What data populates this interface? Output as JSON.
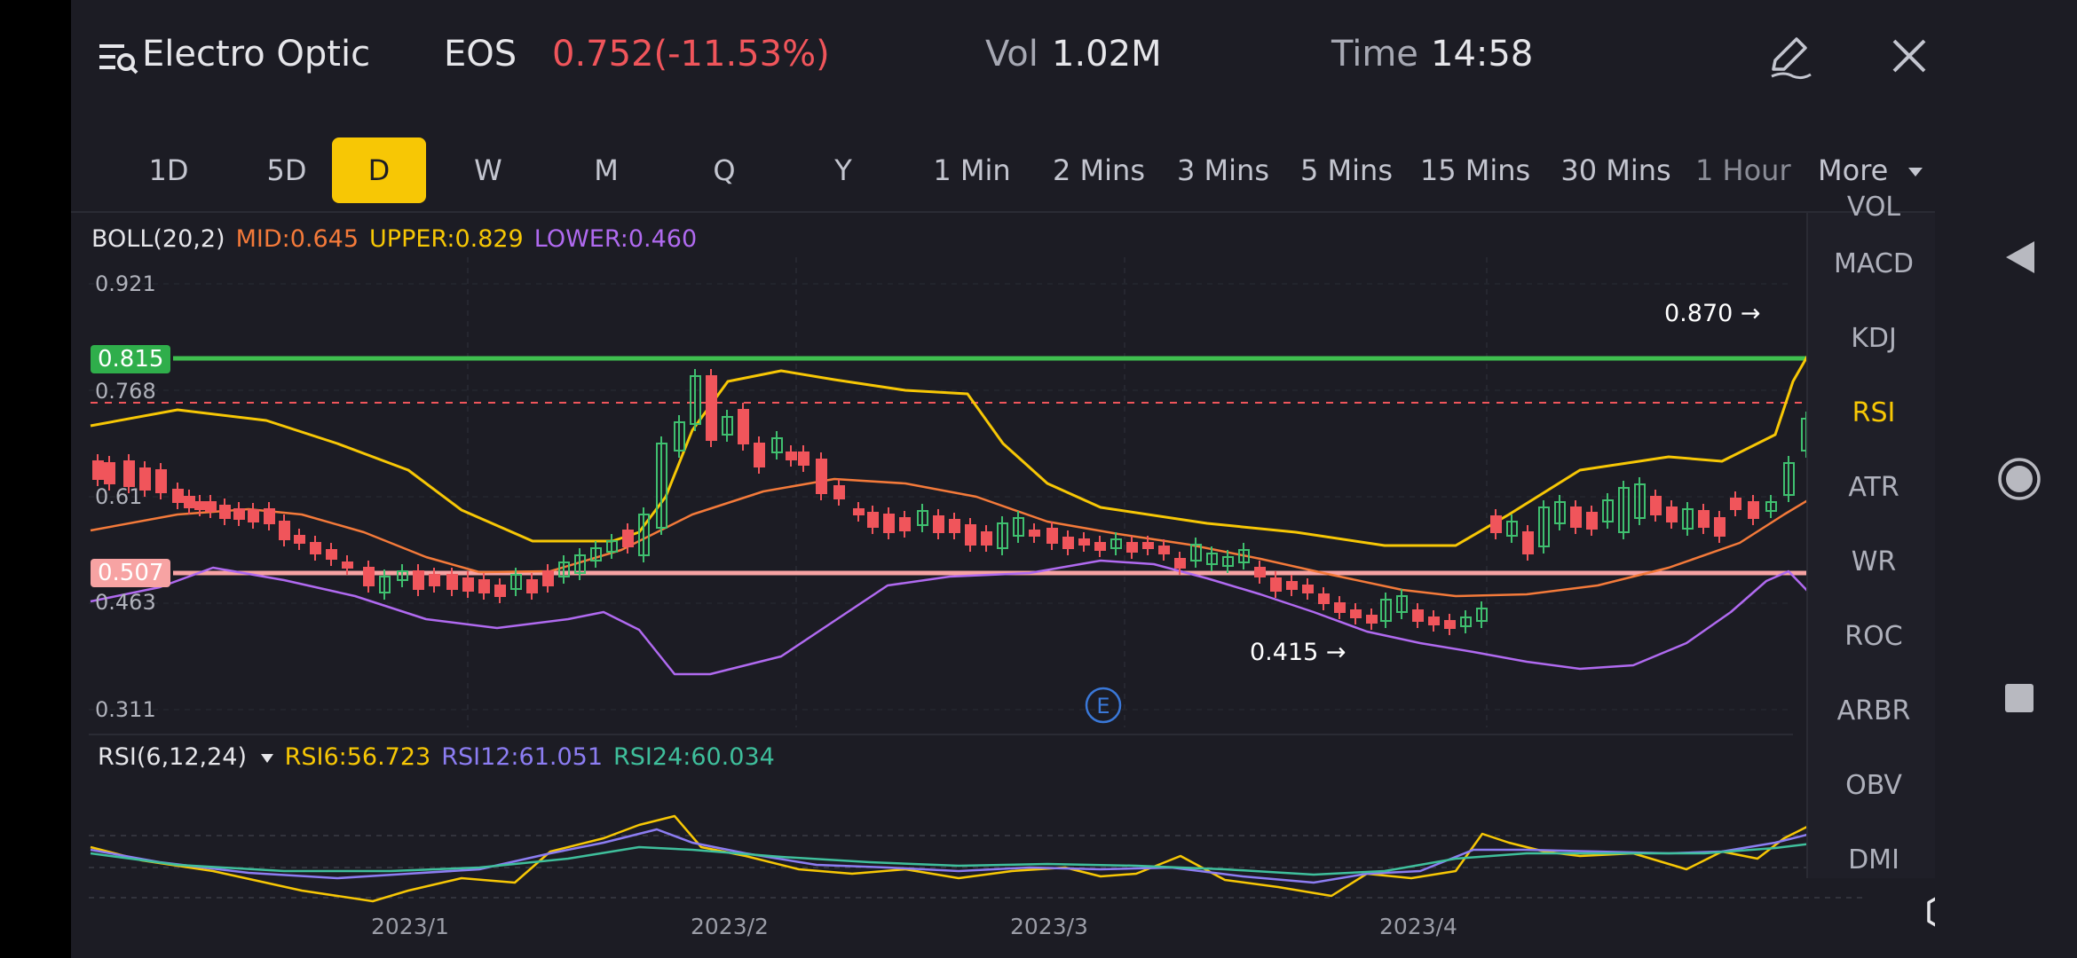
{
  "header": {
    "title": "Electro Optic",
    "ticker": "EOS",
    "price": "0.752(-11.53%)",
    "vol_label": "Vol",
    "vol_value": "1.02M",
    "time_label": "Time",
    "time_value": "14:58"
  },
  "tabs": [
    "1D",
    "5D",
    "D",
    "W",
    "M",
    "Q",
    "Y",
    "1 Min",
    "2 Mins",
    "3 Mins",
    "5 Mins",
    "15 Mins",
    "30 Mins",
    "1 Hour"
  ],
  "active_tab": "D",
  "more_label": "More",
  "indicators": [
    "VOL",
    "MACD",
    "KDJ",
    "RSI",
    "ATR",
    "WR",
    "ROC",
    "ARBR",
    "OBV",
    "DMI"
  ],
  "active_indicator": "RSI",
  "boll_legend": {
    "name": "BOLL(20,2)",
    "mid": "MID:0.645",
    "upper": "UPPER:0.829",
    "lower": "LOWER:0.460"
  },
  "rsi_legend": {
    "name": "RSI(6,12,24)",
    "rsi6": "RSI6:56.723",
    "rsi12": "RSI12:61.051",
    "rsi24": "RSI24:60.034"
  },
  "price_axis": [
    "0.921",
    "0.768",
    "0.61",
    "0.463",
    "0.311"
  ],
  "price_lines": {
    "green_tag": "0.815",
    "pink_tag": "0.507"
  },
  "annotations": {
    "high": "0.870",
    "low": "0.415",
    "event_marker": "E"
  },
  "x_axis_dates": [
    "2023/1",
    "2023/2",
    "2023/3",
    "2023/4"
  ],
  "colors": {
    "up": "#3fbf6f",
    "down": "#f0555b",
    "boll_mid": "#f47a3a",
    "boll_upper": "#f7c705",
    "boll_lower": "#b06af0",
    "active": "#f7c705"
  },
  "icons": [
    "menu-search-icon",
    "edit-icon",
    "close-icon",
    "dropdown-arrow-icon",
    "settings-icon",
    "back-nav-icon",
    "home-nav-icon",
    "recent-nav-icon"
  ]
}
